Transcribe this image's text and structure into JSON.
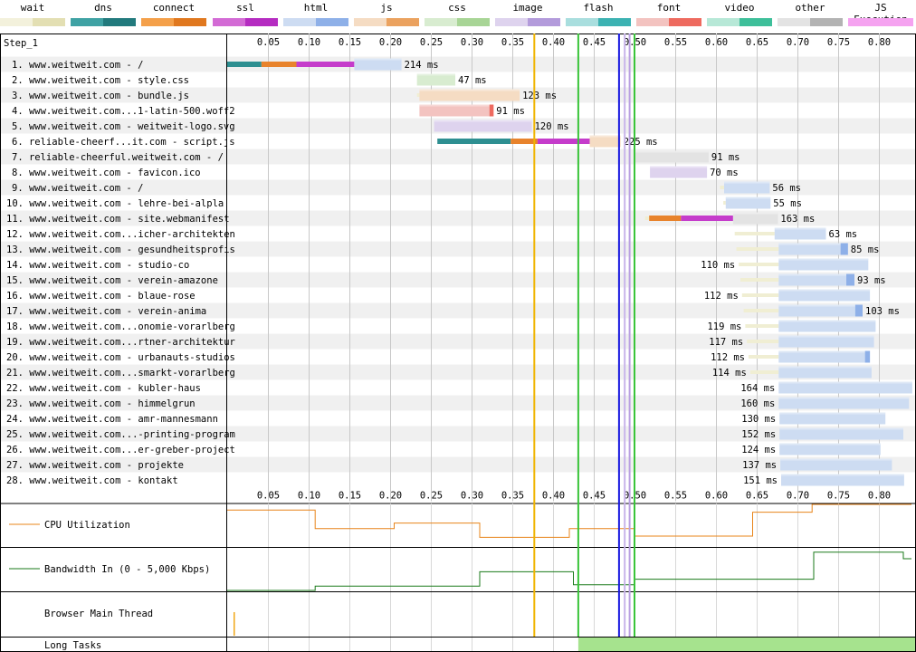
{
  "legend": [
    {
      "label": "wait",
      "colors": [
        "#f3f1dc",
        "#e3dfb3"
      ]
    },
    {
      "label": "dns",
      "colors": [
        "#3fa2a4",
        "#227a7d"
      ]
    },
    {
      "label": "connect",
      "colors": [
        "#f4a04a",
        "#e0781f"
      ]
    },
    {
      "label": "ssl",
      "colors": [
        "#d36bd5",
        "#b52cc1"
      ]
    },
    {
      "label": "html",
      "colors": [
        "#cddcf2",
        "#8eb0e8"
      ]
    },
    {
      "label": "js",
      "colors": [
        "#f5dcc3",
        "#eba25f"
      ]
    },
    {
      "label": "css",
      "colors": [
        "#d8ecd0",
        "#a8d596"
      ]
    },
    {
      "label": "image",
      "colors": [
        "#ded3ee",
        "#b39bdb"
      ]
    },
    {
      "label": "flash",
      "colors": [
        "#a9dede",
        "#3cb2b2"
      ]
    },
    {
      "label": "font",
      "colors": [
        "#f3c3c0",
        "#ee6a5f"
      ]
    },
    {
      "label": "video",
      "colors": [
        "#b7e8d7",
        "#3ebf9a"
      ]
    },
    {
      "label": "other",
      "colors": [
        "#e3e3e3",
        "#b3b3b3"
      ]
    },
    {
      "label": "JS Execution",
      "colors": [
        "#f5a3f0",
        "#f5a3f0"
      ]
    }
  ],
  "step_label": "Step_1",
  "axis": {
    "ticks": [
      0.05,
      0.1,
      0.15,
      0.2,
      0.25,
      0.3,
      0.35,
      0.4,
      0.45,
      0.5,
      0.55,
      0.6,
      0.65,
      0.7,
      0.75,
      0.8
    ],
    "tick_labels": [
      "0.05",
      "0.10",
      "0.15",
      "0.20",
      "0.25",
      "0.30",
      "0.35",
      "0.40",
      "0.45",
      "0.50",
      "0.55",
      "0.60",
      "0.65",
      "0.70",
      "0.75",
      "0.80"
    ],
    "max": 0.84
  },
  "markers": [
    {
      "time": 0.377,
      "color": "#f0b400"
    },
    {
      "time": 0.431,
      "color": "#3ac43a"
    },
    {
      "time": 0.481,
      "color": "#1a1ae0"
    },
    {
      "time": 0.488,
      "color": "#c8b4ea"
    },
    {
      "time": 0.494,
      "color": "#b9a0e2"
    },
    {
      "time": 0.5,
      "color": "#3ac43a"
    }
  ],
  "requests": [
    {
      "label": "1. www.weitweit.com - /",
      "type": "html",
      "ms_label": "214 ms",
      "segments": [
        {
          "s": 0.0,
          "e": 0.042,
          "c": "dns"
        },
        {
          "s": 0.042,
          "e": 0.085,
          "c": "connect"
        },
        {
          "s": 0.085,
          "e": 0.156,
          "c": "ssl"
        },
        {
          "s": 0.156,
          "e": 0.214,
          "c": "main"
        }
      ]
    },
    {
      "label": "2. www.weitweit.com - style.css",
      "type": "css",
      "ms_label": "47 ms",
      "segments": [
        {
          "s": 0.233,
          "e": 0.28,
          "c": "main"
        }
      ]
    },
    {
      "label": "3. www.weitweit.com - bundle.js",
      "type": "js",
      "ms_label": "123 ms",
      "segments": [
        {
          "s": 0.233,
          "e": 0.236,
          "c": "wait"
        },
        {
          "s": 0.236,
          "e": 0.359,
          "c": "main"
        }
      ]
    },
    {
      "label": "4. www.weitweit.com...1-latin-500.woff2",
      "type": "font",
      "ms_label": "91 ms",
      "segments": [
        {
          "s": 0.236,
          "e": 0.327,
          "c": "main"
        },
        {
          "s": 0.322,
          "e": 0.327,
          "c": "recv"
        }
      ]
    },
    {
      "label": "5. www.weitweit.com - weitweit-logo.svg",
      "type": "image",
      "ms_label": "120 ms",
      "segments": [
        {
          "s": 0.254,
          "e": 0.374,
          "c": "main"
        }
      ]
    },
    {
      "label": "6. reliable-cheerf...it.com - script.js",
      "type": "js",
      "ms_label": "225 ms",
      "segments": [
        {
          "s": 0.258,
          "e": 0.348,
          "c": "dns"
        },
        {
          "s": 0.348,
          "e": 0.381,
          "c": "connect"
        },
        {
          "s": 0.381,
          "e": 0.445,
          "c": "ssl"
        },
        {
          "s": 0.445,
          "e": 0.483,
          "c": "main"
        }
      ]
    },
    {
      "label": "7. reliable-cheerful.weitweit.com - /",
      "type": "other",
      "ms_label": "91 ms",
      "segments": [
        {
          "s": 0.5,
          "e": 0.591,
          "c": "main"
        }
      ]
    },
    {
      "label": "8. www.weitweit.com - favicon.ico",
      "type": "image",
      "ms_label": "70 ms",
      "segments": [
        {
          "s": 0.519,
          "e": 0.589,
          "c": "main"
        }
      ]
    },
    {
      "label": "9. www.weitweit.com - /",
      "type": "html",
      "ms_label": "56 ms",
      "segments": [
        {
          "s": 0.605,
          "e": 0.61,
          "c": "wait"
        },
        {
          "s": 0.61,
          "e": 0.666,
          "c": "main"
        }
      ]
    },
    {
      "label": "10. www.weitweit.com - lehre-bei-alpla",
      "type": "html",
      "ms_label": "55 ms",
      "segments": [
        {
          "s": 0.609,
          "e": 0.612,
          "c": "wait"
        },
        {
          "s": 0.612,
          "e": 0.667,
          "c": "main"
        }
      ]
    },
    {
      "label": "11. www.weitweit.com - site.webmanifest",
      "type": "other",
      "ms_label": "163 ms",
      "segments": [
        {
          "s": 0.513,
          "e": 0.518,
          "c": "wait"
        },
        {
          "s": 0.518,
          "e": 0.557,
          "c": "connect"
        },
        {
          "s": 0.557,
          "e": 0.621,
          "c": "ssl"
        },
        {
          "s": 0.621,
          "e": 0.676,
          "c": "main"
        }
      ]
    },
    {
      "label": "12. www.weitweit.com...icher-architekten",
      "type": "html",
      "ms_label": "63 ms",
      "segments": [
        {
          "s": 0.623,
          "e": 0.672,
          "c": "wait"
        },
        {
          "s": 0.672,
          "e": 0.735,
          "c": "main"
        }
      ]
    },
    {
      "label": "13. www.weitweit.com - gesundheitsprofis",
      "type": "html",
      "ms_label": "85 ms",
      "segments": [
        {
          "s": 0.625,
          "e": 0.677,
          "c": "wait"
        },
        {
          "s": 0.677,
          "e": 0.762,
          "c": "main"
        },
        {
          "s": 0.753,
          "e": 0.762,
          "c": "recv"
        }
      ]
    },
    {
      "label": "14. www.weitweit.com - studio-co",
      "type": "html",
      "ms_label": "110 ms",
      "segments": [
        {
          "s": 0.628,
          "e": 0.677,
          "c": "wait"
        },
        {
          "s": 0.677,
          "e": 0.787,
          "c": "main"
        }
      ]
    },
    {
      "label": "15. www.weitweit.com - verein-amazone",
      "type": "html",
      "ms_label": "93 ms",
      "segments": [
        {
          "s": 0.63,
          "e": 0.677,
          "c": "wait"
        },
        {
          "s": 0.677,
          "e": 0.77,
          "c": "main"
        },
        {
          "s": 0.76,
          "e": 0.77,
          "c": "recv"
        }
      ]
    },
    {
      "label": "16. www.weitweit.com - blaue-rose",
      "type": "html",
      "ms_label": "112 ms",
      "segments": [
        {
          "s": 0.632,
          "e": 0.677,
          "c": "wait"
        },
        {
          "s": 0.677,
          "e": 0.789,
          "c": "main"
        }
      ]
    },
    {
      "label": "17. www.weitweit.com - verein-anima",
      "type": "html",
      "ms_label": "103 ms",
      "segments": [
        {
          "s": 0.634,
          "e": 0.677,
          "c": "wait"
        },
        {
          "s": 0.677,
          "e": 0.78,
          "c": "main"
        },
        {
          "s": 0.771,
          "e": 0.78,
          "c": "recv"
        }
      ]
    },
    {
      "label": "18. www.weitweit.com...onomie-vorarlberg",
      "type": "html",
      "ms_label": "119 ms",
      "segments": [
        {
          "s": 0.636,
          "e": 0.677,
          "c": "wait"
        },
        {
          "s": 0.677,
          "e": 0.796,
          "c": "main"
        }
      ]
    },
    {
      "label": "19. www.weitweit.com...rtner-architektur",
      "type": "html",
      "ms_label": "117 ms",
      "segments": [
        {
          "s": 0.638,
          "e": 0.677,
          "c": "wait"
        },
        {
          "s": 0.677,
          "e": 0.794,
          "c": "main"
        }
      ]
    },
    {
      "label": "20. www.weitweit.com - urbanauts-studios",
      "type": "html",
      "ms_label": "112 ms",
      "segments": [
        {
          "s": 0.64,
          "e": 0.677,
          "c": "wait"
        },
        {
          "s": 0.677,
          "e": 0.789,
          "c": "main"
        },
        {
          "s": 0.783,
          "e": 0.789,
          "c": "recv"
        }
      ]
    },
    {
      "label": "21. www.weitweit.com...smarkt-vorarlberg",
      "type": "html",
      "ms_label": "114 ms",
      "segments": [
        {
          "s": 0.642,
          "e": 0.677,
          "c": "wait"
        },
        {
          "s": 0.677,
          "e": 0.791,
          "c": "main"
        }
      ]
    },
    {
      "label": "22. www.weitweit.com - kubler-haus",
      "type": "html",
      "ms_label": "164 ms",
      "segments": [
        {
          "s": 0.677,
          "e": 0.841,
          "c": "main"
        }
      ]
    },
    {
      "label": "23. www.weitweit.com - himmelgrun",
      "type": "html",
      "ms_label": "160 ms",
      "segments": [
        {
          "s": 0.677,
          "e": 0.837,
          "c": "main"
        }
      ]
    },
    {
      "label": "24. www.weitweit.com - amr-mannesmann",
      "type": "html",
      "ms_label": "130 ms",
      "segments": [
        {
          "s": 0.678,
          "e": 0.808,
          "c": "main"
        }
      ]
    },
    {
      "label": "25. www.weitweit.com...-printing-program",
      "type": "html",
      "ms_label": "152 ms",
      "segments": [
        {
          "s": 0.678,
          "e": 0.83,
          "c": "main"
        }
      ]
    },
    {
      "label": "26. www.weitweit.com...er-greber-project",
      "type": "html",
      "ms_label": "124 ms",
      "segments": [
        {
          "s": 0.678,
          "e": 0.802,
          "c": "main"
        }
      ]
    },
    {
      "label": "27. www.weitweit.com - projekte",
      "type": "html",
      "ms_label": "137 ms",
      "segments": [
        {
          "s": 0.679,
          "e": 0.816,
          "c": "main"
        }
      ]
    },
    {
      "label": "28. www.weitweit.com - kontakt",
      "type": "html",
      "ms_label": "151 ms",
      "segments": [
        {
          "s": 0.68,
          "e": 0.831,
          "c": "main"
        }
      ]
    }
  ],
  "panels": {
    "cpu": {
      "label": "CPU Utilization",
      "color": "#e8841a",
      "series": [
        [
          0.0,
          0.15
        ],
        [
          0.108,
          0.15
        ],
        [
          0.108,
          0.58
        ],
        [
          0.205,
          0.58
        ],
        [
          0.205,
          0.45
        ],
        [
          0.31,
          0.45
        ],
        [
          0.31,
          0.78
        ],
        [
          0.42,
          0.78
        ],
        [
          0.42,
          0.58
        ],
        [
          0.5,
          0.58
        ],
        [
          0.5,
          0.75
        ],
        [
          0.645,
          0.75
        ],
        [
          0.645,
          0.2
        ],
        [
          0.718,
          0.2
        ],
        [
          0.718,
          0.02
        ],
        [
          0.84,
          0.02
        ]
      ]
    },
    "bandwidth": {
      "label": "Bandwidth In (0 - 5,000 Kbps)",
      "color": "#1a7a1a",
      "series": [
        [
          0.0,
          0.98
        ],
        [
          0.108,
          0.98
        ],
        [
          0.108,
          0.88
        ],
        [
          0.31,
          0.88
        ],
        [
          0.31,
          0.55
        ],
        [
          0.425,
          0.55
        ],
        [
          0.425,
          0.85
        ],
        [
          0.5,
          0.85
        ],
        [
          0.5,
          0.72
        ],
        [
          0.72,
          0.72
        ],
        [
          0.72,
          0.1
        ],
        [
          0.83,
          0.1
        ],
        [
          0.83,
          0.25
        ],
        [
          0.84,
          0.25
        ]
      ]
    },
    "main_thread": {
      "label": "Browser Main Thread"
    },
    "long_tasks": {
      "label": "Long Tasks",
      "start": 0.431
    }
  }
}
